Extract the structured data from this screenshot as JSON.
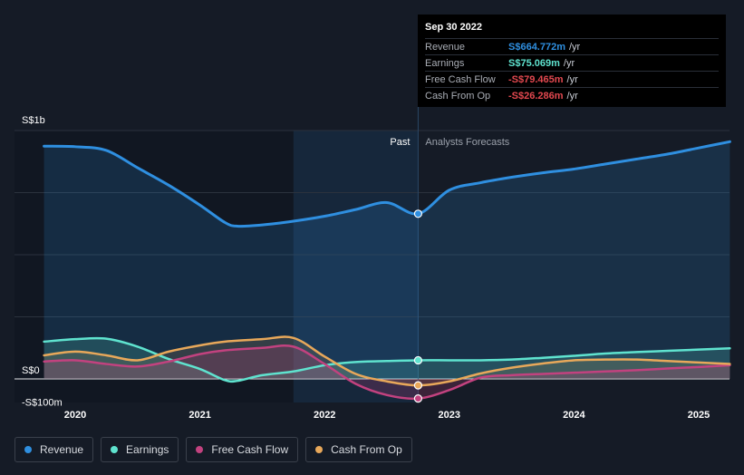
{
  "colors": {
    "revenue": "#2f8fe0",
    "earnings": "#5fe3cf",
    "free_cash_flow": "#c2427f",
    "cash_from_op": "#e8a85a",
    "grid": "#2b323d",
    "text": "#c8ccd4"
  },
  "tooltip": {
    "date": "Sep 30 2022",
    "rows": [
      {
        "label": "Revenue",
        "value": "S$664.772m",
        "unit": "/yr",
        "color": "#2f8fe0"
      },
      {
        "label": "Earnings",
        "value": "S$75.069m",
        "unit": "/yr",
        "color": "#5fe3cf"
      },
      {
        "label": "Free Cash Flow",
        "value": "-S$79.465m",
        "unit": "/yr",
        "color": "#e2484f"
      },
      {
        "label": "Cash From Op",
        "value": "-S$26.286m",
        "unit": "/yr",
        "color": "#e2484f"
      }
    ]
  },
  "chart_data": {
    "type": "line",
    "y_axis_labels": [
      "S$1b",
      "S$0",
      "-S$100m"
    ],
    "ylim": [
      -100,
      1000
    ],
    "x_ticks": [
      2020,
      2021,
      2022,
      2023,
      2024,
      2025
    ],
    "x_tick_labels": [
      "2020",
      "2021",
      "2022",
      "2023",
      "2024",
      "2025"
    ],
    "past_label": "Past",
    "forecast_label": "Analysts Forecasts",
    "divider_x": 2022.75,
    "highlight_start_x": 2021.75,
    "marker_x": 2022.75,
    "series": [
      {
        "key": "revenue",
        "name": "Revenue",
        "color": "#2f8fe0",
        "points": [
          [
            2019.75,
            937
          ],
          [
            2020.0,
            935
          ],
          [
            2020.25,
            920
          ],
          [
            2020.5,
            850
          ],
          [
            2020.75,
            780
          ],
          [
            2021.0,
            700
          ],
          [
            2021.2,
            630
          ],
          [
            2021.3,
            615
          ],
          [
            2021.5,
            620
          ],
          [
            2021.75,
            635
          ],
          [
            2022.0,
            655
          ],
          [
            2022.25,
            682
          ],
          [
            2022.5,
            710
          ],
          [
            2022.75,
            665
          ],
          [
            2023.0,
            760
          ],
          [
            2023.25,
            790
          ],
          [
            2023.5,
            812
          ],
          [
            2023.75,
            830
          ],
          [
            2024.0,
            845
          ],
          [
            2024.25,
            865
          ],
          [
            2024.5,
            885
          ],
          [
            2024.75,
            905
          ],
          [
            2025.0,
            930
          ],
          [
            2025.25,
            955
          ]
        ],
        "marker_value": 665
      },
      {
        "key": "earnings",
        "name": "Earnings",
        "color": "#5fe3cf",
        "points": [
          [
            2019.75,
            150
          ],
          [
            2020.0,
            160
          ],
          [
            2020.25,
            162
          ],
          [
            2020.5,
            130
          ],
          [
            2020.75,
            80
          ],
          [
            2021.0,
            40
          ],
          [
            2021.2,
            -5
          ],
          [
            2021.3,
            -8
          ],
          [
            2021.5,
            15
          ],
          [
            2021.75,
            30
          ],
          [
            2022.0,
            55
          ],
          [
            2022.25,
            68
          ],
          [
            2022.5,
            72
          ],
          [
            2022.75,
            75
          ],
          [
            2023.0,
            75
          ],
          [
            2023.25,
            75
          ],
          [
            2023.5,
            78
          ],
          [
            2023.75,
            85
          ],
          [
            2024.0,
            93
          ],
          [
            2024.25,
            102
          ],
          [
            2024.5,
            108
          ],
          [
            2024.75,
            113
          ],
          [
            2025.0,
            118
          ],
          [
            2025.25,
            123
          ]
        ],
        "marker_value": 75
      },
      {
        "key": "free_cash_flow",
        "name": "Free Cash Flow",
        "color": "#c2427f",
        "points": [
          [
            2019.75,
            70
          ],
          [
            2020.0,
            75
          ],
          [
            2020.25,
            60
          ],
          [
            2020.5,
            50
          ],
          [
            2020.75,
            70
          ],
          [
            2021.0,
            100
          ],
          [
            2021.2,
            115
          ],
          [
            2021.5,
            125
          ],
          [
            2021.75,
            130
          ],
          [
            2022.0,
            60
          ],
          [
            2022.25,
            -20
          ],
          [
            2022.5,
            -65
          ],
          [
            2022.75,
            -79
          ],
          [
            2023.0,
            -45
          ],
          [
            2023.25,
            5
          ],
          [
            2023.5,
            15
          ],
          [
            2023.75,
            20
          ],
          [
            2024.0,
            25
          ],
          [
            2024.25,
            30
          ],
          [
            2024.5,
            35
          ],
          [
            2024.75,
            42
          ],
          [
            2025.0,
            48
          ],
          [
            2025.25,
            55
          ]
        ],
        "marker_value": -79
      },
      {
        "key": "cash_from_op",
        "name": "Cash From Op",
        "color": "#e8a85a",
        "points": [
          [
            2019.75,
            95
          ],
          [
            2020.0,
            110
          ],
          [
            2020.25,
            95
          ],
          [
            2020.5,
            75
          ],
          [
            2020.75,
            110
          ],
          [
            2021.0,
            135
          ],
          [
            2021.2,
            150
          ],
          [
            2021.5,
            160
          ],
          [
            2021.75,
            165
          ],
          [
            2022.0,
            90
          ],
          [
            2022.25,
            20
          ],
          [
            2022.5,
            -10
          ],
          [
            2022.75,
            -26
          ],
          [
            2023.0,
            -10
          ],
          [
            2023.25,
            22
          ],
          [
            2023.5,
            45
          ],
          [
            2023.75,
            62
          ],
          [
            2024.0,
            75
          ],
          [
            2024.25,
            78
          ],
          [
            2024.5,
            78
          ],
          [
            2024.75,
            72
          ],
          [
            2025.0,
            66
          ],
          [
            2025.25,
            60
          ]
        ],
        "marker_value": -26
      }
    ]
  },
  "legend": [
    {
      "key": "revenue",
      "label": "Revenue",
      "color": "#2f8fe0"
    },
    {
      "key": "earnings",
      "label": "Earnings",
      "color": "#5fe3cf"
    },
    {
      "key": "free_cash_flow",
      "label": "Free Cash Flow",
      "color": "#c2427f"
    },
    {
      "key": "cash_from_op",
      "label": "Cash From Op",
      "color": "#e8a85a"
    }
  ]
}
